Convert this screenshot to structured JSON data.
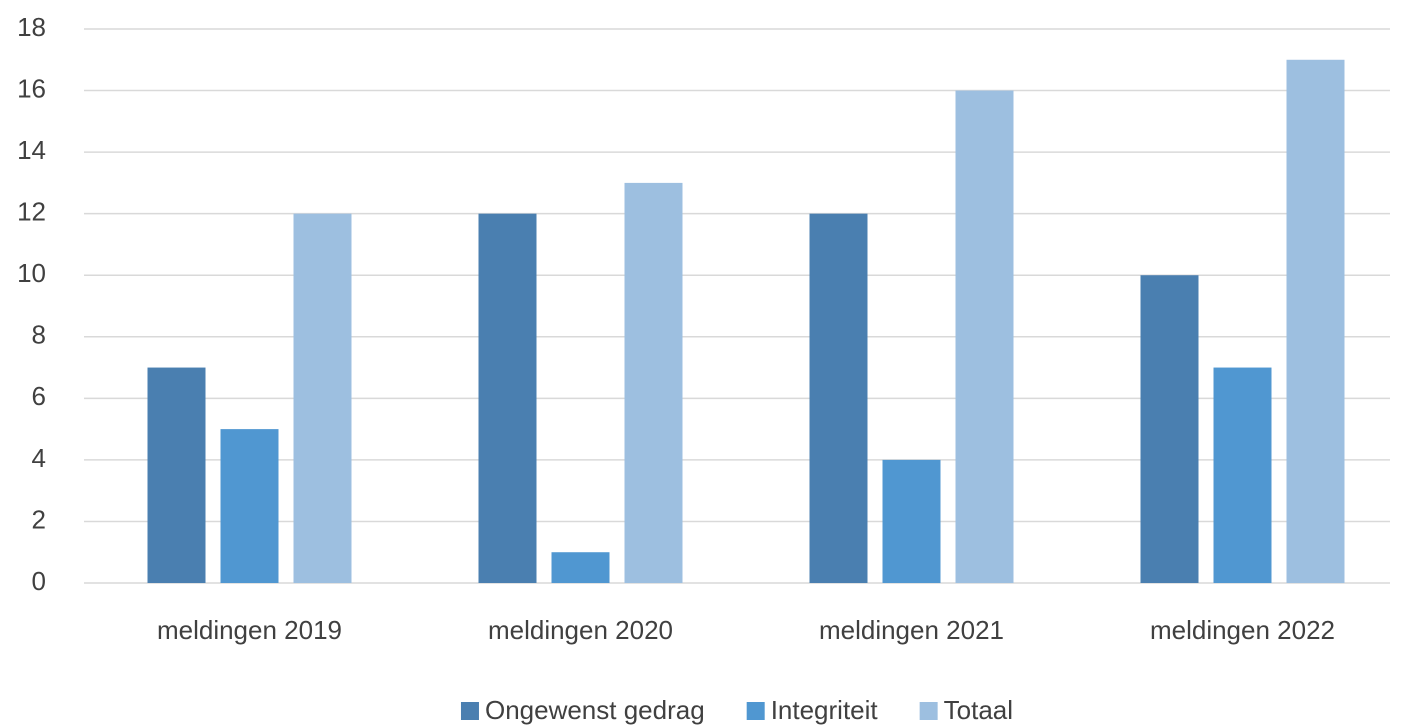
{
  "chart_data": {
    "type": "bar",
    "categories": [
      "meldingen 2019",
      "meldingen 2020",
      "meldingen 2021",
      "meldingen 2022"
    ],
    "series": [
      {
        "name": "Ongewenst gedrag",
        "color": "#4a7fb0",
        "values": [
          7,
          12,
          12,
          10
        ]
      },
      {
        "name": "Integriteit",
        "color": "#5097d1",
        "values": [
          5,
          1,
          4,
          7
        ]
      },
      {
        "name": "Totaal",
        "color": "#9dbfe0",
        "values": [
          12,
          13,
          16,
          17
        ]
      }
    ],
    "ylim": [
      0,
      18
    ],
    "yticks": [
      0,
      2,
      4,
      6,
      8,
      10,
      12,
      14,
      16,
      18
    ],
    "grid": true,
    "legend": "bottom"
  }
}
